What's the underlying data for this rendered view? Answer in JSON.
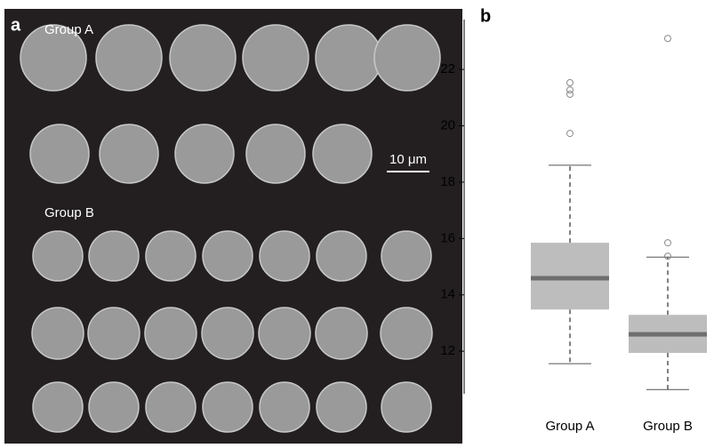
{
  "panel_a": {
    "label": "a",
    "group_a": "Group A",
    "group_b": "Group B",
    "scale_bar": "10 μm"
  },
  "chart_data": {
    "type": "box",
    "panel_label": "b",
    "categories": [
      "Group A",
      "Group B"
    ],
    "boxes": [
      {
        "whislo": 11.56,
        "q1": 13.48,
        "med": 14.59,
        "q3": 15.85,
        "whishi": 18.6,
        "fliers": [
          21.53,
          21.27,
          21.12,
          19.73
        ]
      },
      {
        "whislo": 10.64,
        "q1": 11.94,
        "med": 12.6,
        "q3": 13.29,
        "whishi": 15.34,
        "fliers": [
          23.1,
          15.85,
          15.37
        ]
      }
    ],
    "ylim": [
      10.49,
      23.77
    ],
    "yticks": [
      12,
      14,
      16,
      18,
      20,
      22
    ],
    "box_color": "#bdbdbd",
    "median_color": "#6e6e6e",
    "flier_color": "#8a8a8a"
  }
}
